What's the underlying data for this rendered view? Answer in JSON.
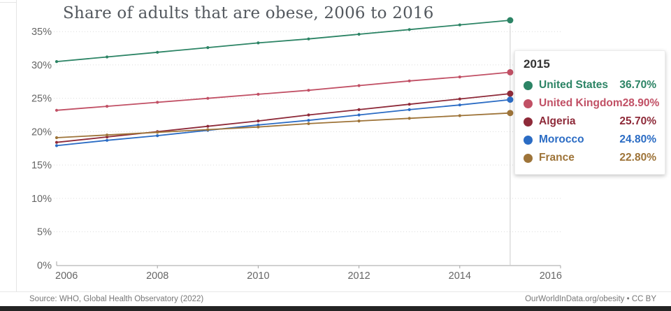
{
  "title": "Share of adults that are obese, 2006 to 2016",
  "footer": {
    "source": "Source: WHO, Global Health Observatory (2022)",
    "attribution": "OurWorldInData.org/obesity • CC BY"
  },
  "tooltip": {
    "year": "2015",
    "rows": [
      {
        "label": "United States",
        "value": "36.70%",
        "color": "#2c8465"
      },
      {
        "label": "United Kingdom",
        "value": "28.90%",
        "color": "#c15065"
      },
      {
        "label": "Algeria",
        "value": "25.70%",
        "color": "#8e2a39"
      },
      {
        "label": "Morocco",
        "value": "24.80%",
        "color": "#2b6cc4"
      },
      {
        "label": "France",
        "value": "22.80%",
        "color": "#9e7439"
      }
    ]
  },
  "chart_data": {
    "type": "line",
    "title": "Share of adults that are obese, 2006 to 2016",
    "xlabel": "",
    "ylabel": "",
    "x": [
      2006,
      2007,
      2008,
      2009,
      2010,
      2011,
      2012,
      2013,
      2014,
      2015
    ],
    "series": [
      {
        "name": "United States",
        "color": "#2c8465",
        "values": [
          30.5,
          31.2,
          31.9,
          32.6,
          33.3,
          33.9,
          34.6,
          35.3,
          36.0,
          36.7
        ]
      },
      {
        "name": "United Kingdom",
        "color": "#c15065",
        "values": [
          23.2,
          23.8,
          24.4,
          25.0,
          25.6,
          26.2,
          26.9,
          27.6,
          28.2,
          28.9
        ]
      },
      {
        "name": "Algeria",
        "color": "#8e2a39",
        "values": [
          18.4,
          19.2,
          20.0,
          20.8,
          21.6,
          22.5,
          23.3,
          24.1,
          24.9,
          25.7
        ]
      },
      {
        "name": "Morocco",
        "color": "#2b6cc4",
        "values": [
          17.9,
          18.7,
          19.4,
          20.2,
          21.0,
          21.7,
          22.5,
          23.3,
          24.0,
          24.8
        ]
      },
      {
        "name": "France",
        "color": "#9e7439",
        "values": [
          19.1,
          19.5,
          19.9,
          20.3,
          20.7,
          21.2,
          21.6,
          22.0,
          22.4,
          22.8
        ]
      }
    ],
    "xlim": [
      2006,
      2016
    ],
    "ylim": [
      0,
      38.5
    ],
    "xticks": [
      2006,
      2008,
      2010,
      2012,
      2014,
      2016
    ],
    "yticks": [
      0,
      5,
      10,
      15,
      20,
      25,
      30,
      35
    ],
    "ytick_suffix": "%",
    "grid": true,
    "gridline_color": "#dcdcdc",
    "axis_color": "#a3a3a3",
    "tick_label_color": "#666666",
    "hover_year": 2015,
    "hover_line_color": "#cccccc",
    "legend_position": "tooltip"
  }
}
